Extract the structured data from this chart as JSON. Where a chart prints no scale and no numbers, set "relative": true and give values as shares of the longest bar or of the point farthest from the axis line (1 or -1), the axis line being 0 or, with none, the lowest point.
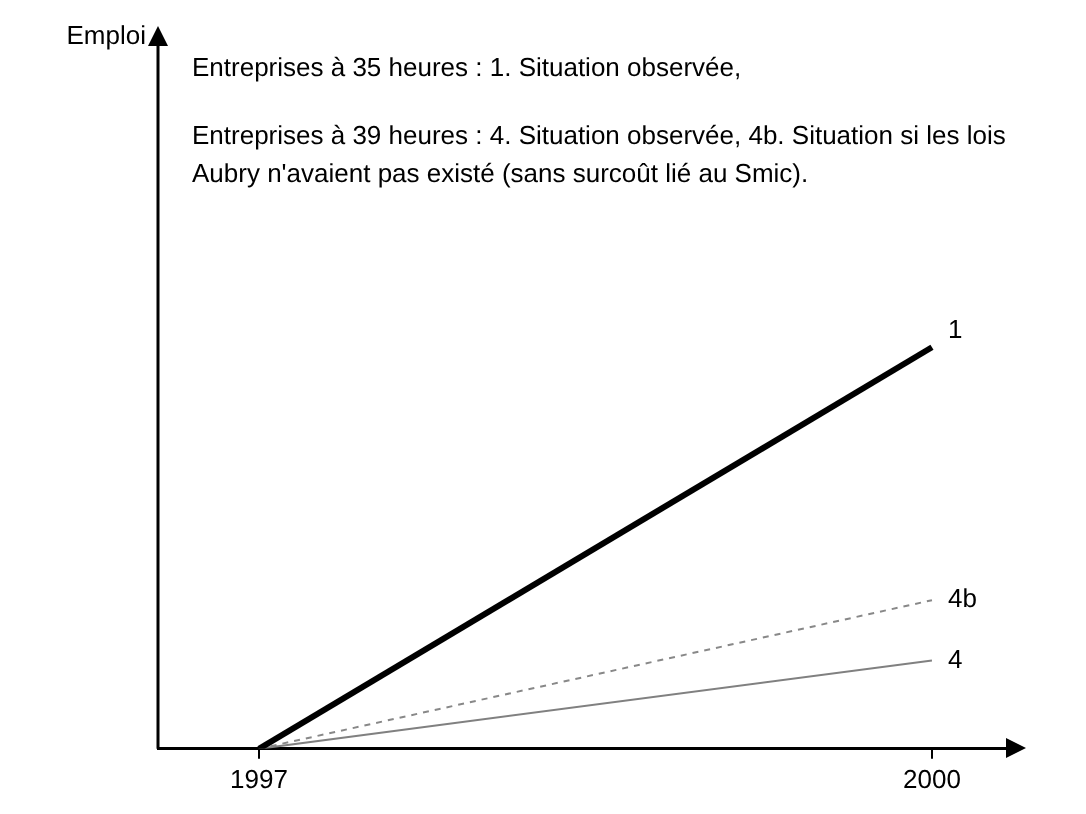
{
  "chart_data": {
    "type": "line",
    "annotations": [
      "Emploi",
      "Entreprises à 35 heures : 1. Situation observée,",
      "Entreprises à 39 heures : 4. Situation observée, 4b. Situation si les lois Aubry n'avaient pas existé (sans surcoût lié au Smic)."
    ],
    "x": [
      1997,
      2000
    ],
    "xlim": [
      1996.55,
      2000.33
    ],
    "xticks": [
      1997,
      2000
    ],
    "relative": true,
    "grid": false,
    "legend": false,
    "marker": "none",
    "series": [
      {
        "name": "1",
        "color": "#000000",
        "values": [
          0,
          1
        ]
      },
      {
        "name": "4b",
        "color": "#888888",
        "line_style": "dashed",
        "values": [
          0,
          0.37
        ]
      },
      {
        "name": "4",
        "color": "#808080",
        "values": [
          0,
          0.22
        ]
      }
    ]
  }
}
